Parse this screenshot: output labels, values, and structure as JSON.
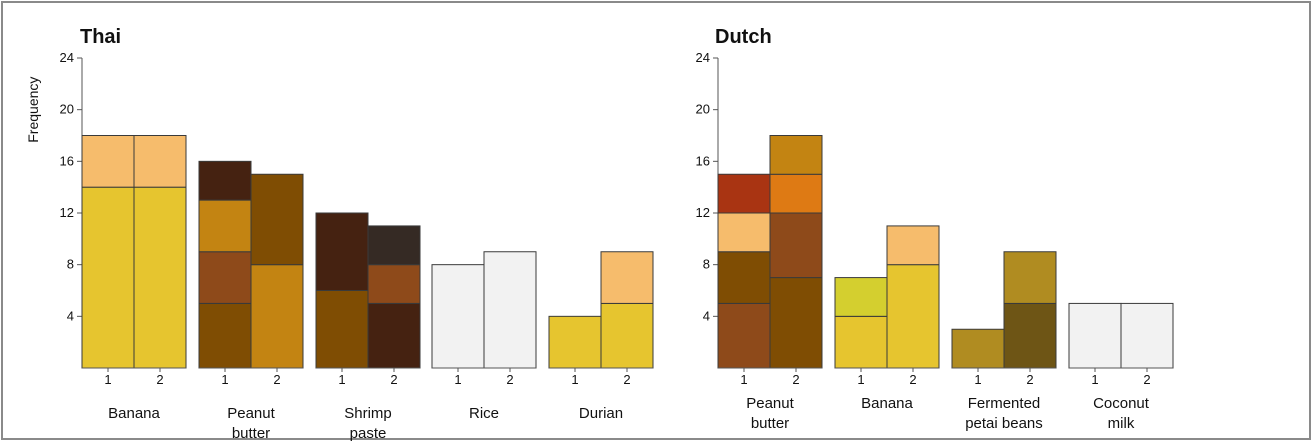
{
  "chart_data": [
    {
      "type": "bar",
      "title": "Thai",
      "ylabel": "Frequency",
      "ylim": [
        0,
        24
      ],
      "yticks": [
        4,
        8,
        12,
        16,
        20,
        24
      ],
      "groups": [
        {
          "label": [
            "Banana"
          ],
          "bars": [
            {
              "x": "1",
              "segments": [
                {
                  "value": 14,
                  "color": "#e6c52f"
                },
                {
                  "value": 4,
                  "color": "#f6bc6c"
                }
              ]
            },
            {
              "x": "2",
              "segments": [
                {
                  "value": 14,
                  "color": "#e6c52f"
                },
                {
                  "value": 4,
                  "color": "#f6bc6c"
                }
              ]
            }
          ]
        },
        {
          "label": [
            "Peanut",
            "butter"
          ],
          "bars": [
            {
              "x": "1",
              "segments": [
                {
                  "value": 5,
                  "color": "#7f4d03"
                },
                {
                  "value": 4,
                  "color": "#8e4a1a"
                },
                {
                  "value": 4,
                  "color": "#c38412"
                },
                {
                  "value": 3,
                  "color": "#452211"
                }
              ]
            },
            {
              "x": "2",
              "segments": [
                {
                  "value": 8,
                  "color": "#c38412"
                },
                {
                  "value": 7,
                  "color": "#7f4d03"
                }
              ]
            }
          ]
        },
        {
          "label": [
            "Shrimp",
            "paste"
          ],
          "bars": [
            {
              "x": "1",
              "segments": [
                {
                  "value": 6,
                  "color": "#7f4d03"
                },
                {
                  "value": 6,
                  "color": "#452211"
                }
              ]
            },
            {
              "x": "2",
              "segments": [
                {
                  "value": 5,
                  "color": "#452211"
                },
                {
                  "value": 3,
                  "color": "#8e4a1a"
                },
                {
                  "value": 3,
                  "color": "#352a24"
                }
              ]
            }
          ]
        },
        {
          "label": [
            "Rice"
          ],
          "bars": [
            {
              "x": "1",
              "segments": [
                {
                  "value": 8,
                  "color": "#f2f2f2"
                }
              ]
            },
            {
              "x": "2",
              "segments": [
                {
                  "value": 9,
                  "color": "#f2f2f2"
                }
              ]
            }
          ]
        },
        {
          "label": [
            "Durian"
          ],
          "bars": [
            {
              "x": "1",
              "segments": [
                {
                  "value": 4,
                  "color": "#e6c52f"
                }
              ]
            },
            {
              "x": "2",
              "segments": [
                {
                  "value": 5,
                  "color": "#e6c52f"
                },
                {
                  "value": 4,
                  "color": "#f6bc6c"
                }
              ]
            }
          ]
        }
      ]
    },
    {
      "type": "bar",
      "title": "Dutch",
      "ylabel": "",
      "ylim": [
        0,
        24
      ],
      "yticks": [
        4,
        8,
        12,
        16,
        20,
        24
      ],
      "groups": [
        {
          "label": [
            "Peanut",
            "butter"
          ],
          "bars": [
            {
              "x": "1",
              "segments": [
                {
                  "value": 5,
                  "color": "#8e4a1a"
                },
                {
                  "value": 4,
                  "color": "#7f4d03"
                },
                {
                  "value": 3,
                  "color": "#f6bc6c"
                },
                {
                  "value": 3,
                  "color": "#a93412"
                }
              ]
            },
            {
              "x": "2",
              "segments": [
                {
                  "value": 7,
                  "color": "#7f4d03"
                },
                {
                  "value": 5,
                  "color": "#8e4a1a"
                },
                {
                  "value": 3,
                  "color": "#de7a14"
                },
                {
                  "value": 3,
                  "color": "#c38412"
                }
              ]
            }
          ]
        },
        {
          "label": [
            "Banana"
          ],
          "bars": [
            {
              "x": "1",
              "segments": [
                {
                  "value": 4,
                  "color": "#e6c52f"
                },
                {
                  "value": 3,
                  "color": "#d4cf2f"
                }
              ]
            },
            {
              "x": "2",
              "segments": [
                {
                  "value": 8,
                  "color": "#e6c52f"
                },
                {
                  "value": 3,
                  "color": "#f6bc6c"
                }
              ]
            }
          ]
        },
        {
          "label": [
            "Fermented",
            "petai beans"
          ],
          "bars": [
            {
              "x": "1",
              "segments": [
                {
                  "value": 3,
                  "color": "#b08c21"
                }
              ]
            },
            {
              "x": "2",
              "segments": [
                {
                  "value": 5,
                  "color": "#6e5515"
                },
                {
                  "value": 4,
                  "color": "#b08c21"
                }
              ]
            }
          ]
        },
        {
          "label": [
            "Coconut",
            "milk"
          ],
          "bars": [
            {
              "x": "1",
              "segments": [
                {
                  "value": 5,
                  "color": "#f2f2f2"
                }
              ]
            },
            {
              "x": "2",
              "segments": [
                {
                  "value": 5,
                  "color": "#f2f2f2"
                }
              ]
            }
          ]
        }
      ]
    }
  ]
}
